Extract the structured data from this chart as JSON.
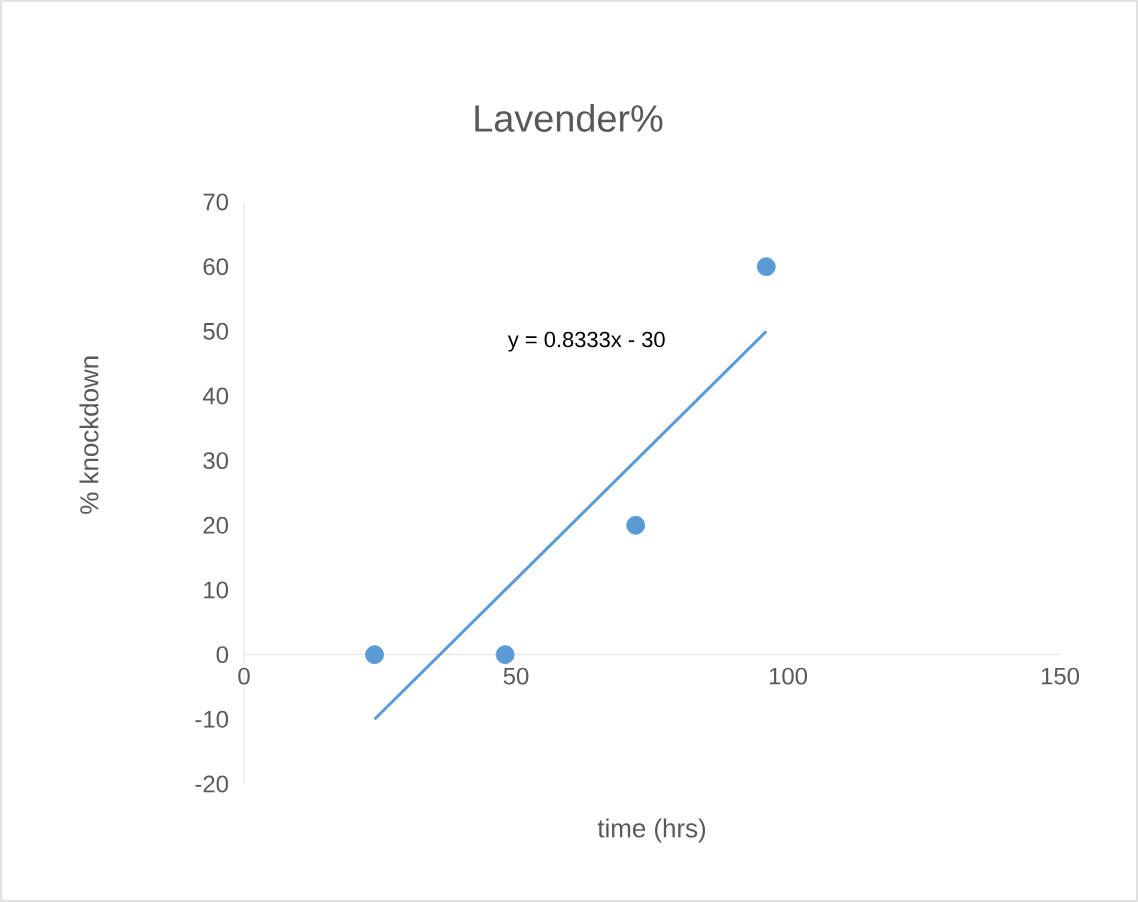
{
  "chart_data": {
    "type": "scatter",
    "title": "Lavender%",
    "xlabel": "time (hrs)",
    "ylabel": "% knockdown",
    "annotations": [
      "y = 0.8333x - 30"
    ],
    "xlim": [
      0,
      150
    ],
    "xticks": [
      0,
      50,
      100,
      150
    ],
    "ylim": [
      -20,
      70
    ],
    "yticks": [
      -20,
      -10,
      0,
      10,
      20,
      30,
      40,
      50,
      60,
      70
    ],
    "marker": "circle",
    "series": [
      {
        "color": "#5b9bd5",
        "x": [
          24,
          48,
          72,
          96
        ],
        "values": [
          0,
          0,
          20,
          60
        ]
      },
      {
        "type": "line",
        "color": "#5b9bd5",
        "x": [
          24,
          96
        ],
        "values": [
          -10,
          50
        ],
        "marker": "none"
      }
    ]
  }
}
